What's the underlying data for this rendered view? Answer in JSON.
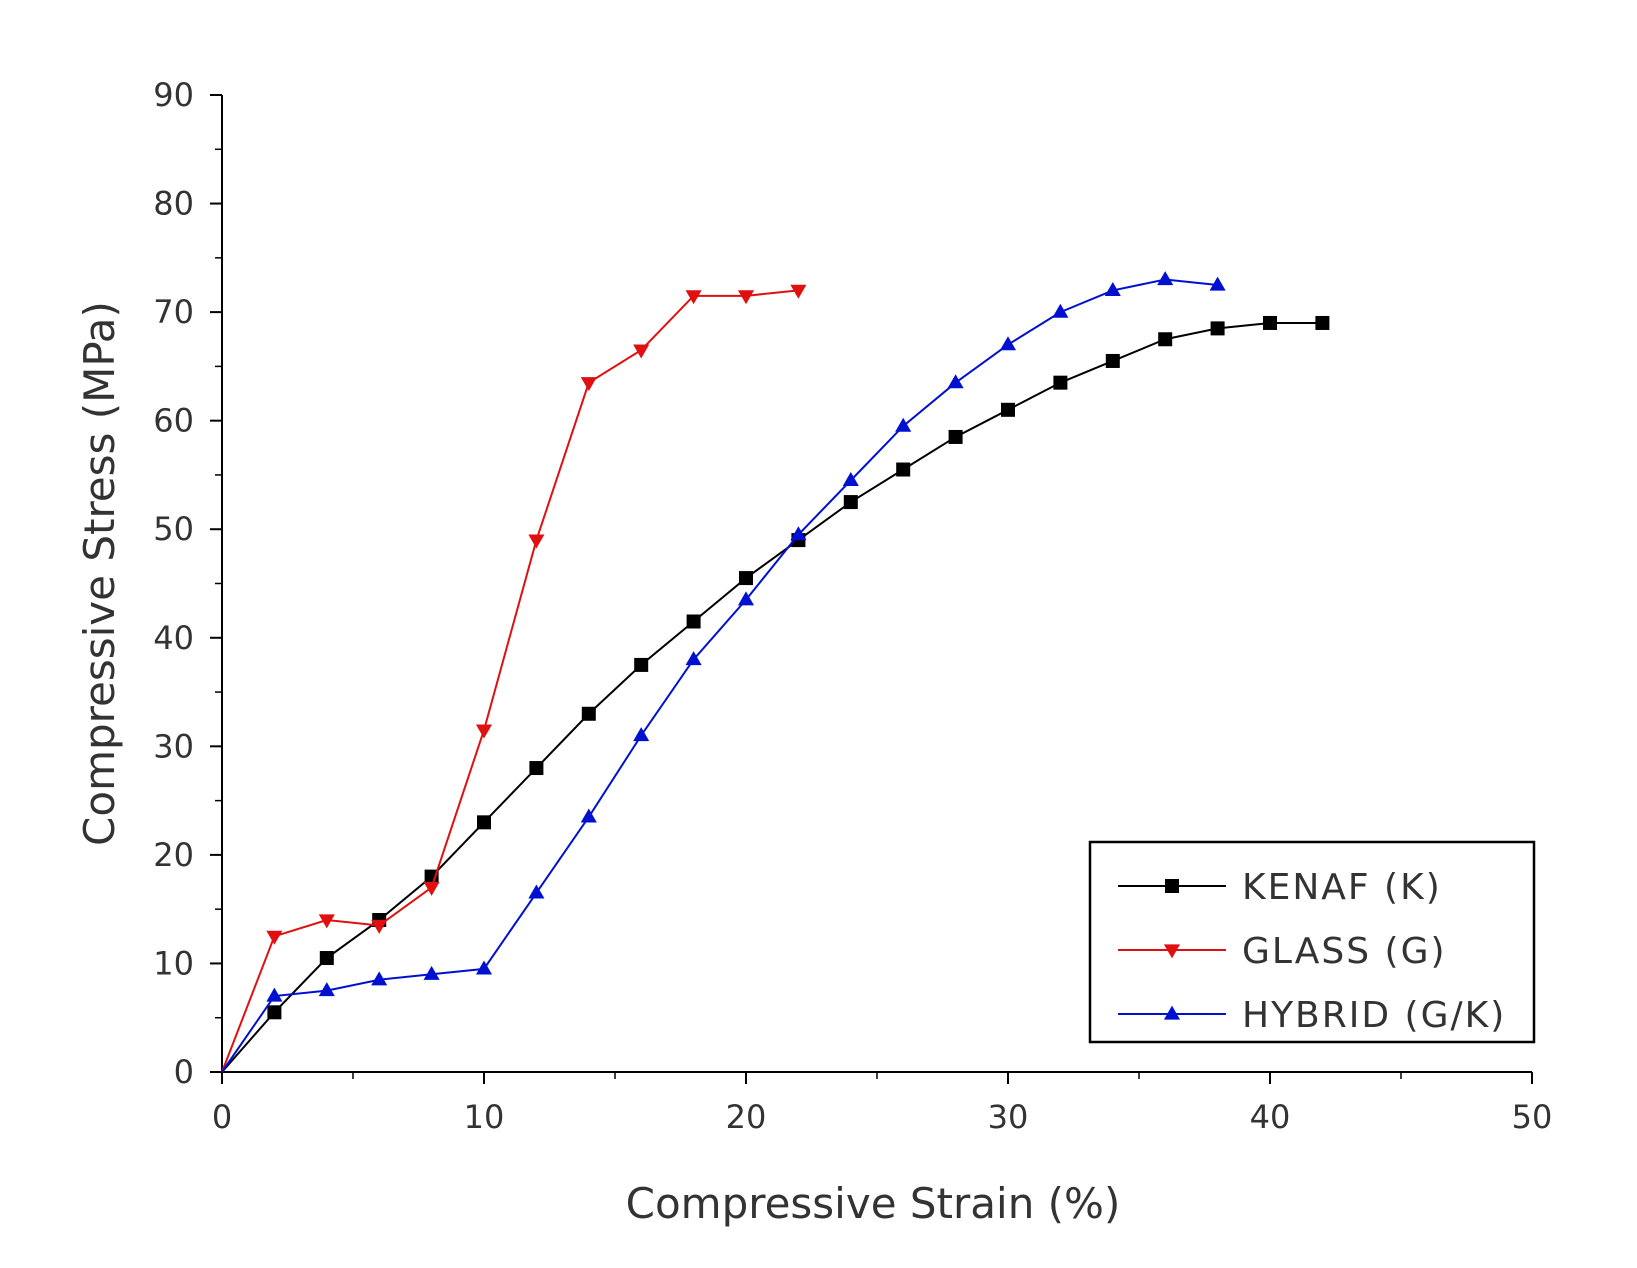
{
  "chart_data": {
    "type": "line",
    "title": "",
    "xlabel": "Compressive Strain (%)",
    "ylabel": "Compressive Stress (MPa)",
    "xlim": [
      0,
      50
    ],
    "ylim": [
      0,
      90
    ],
    "xticks": [
      "0",
      "10",
      "20",
      "30",
      "40",
      "50"
    ],
    "yticks": [
      "0",
      "10",
      "20",
      "30",
      "40",
      "50",
      "60",
      "70",
      "80",
      "90"
    ],
    "grid": false,
    "legend_position": "bottom-right",
    "series": [
      {
        "name": "KENAF (K)",
        "color": "#000000",
        "marker": "square",
        "x": [
          0,
          2,
          4,
          6,
          8,
          10,
          12,
          14,
          16,
          18,
          20,
          22,
          24,
          26,
          28,
          30,
          32,
          34,
          36,
          38,
          40,
          42
        ],
        "y": [
          0,
          5.5,
          10.5,
          14,
          18,
          23,
          28,
          33,
          37.5,
          41.5,
          45.5,
          49,
          52.5,
          55.5,
          58.5,
          61,
          63.5,
          65.5,
          67.5,
          68.5,
          69,
          69
        ]
      },
      {
        "name": "GLASS (G)",
        "color": "#e01010",
        "marker": "triangle-down",
        "x": [
          0,
          2,
          4,
          6,
          8,
          10,
          12,
          14,
          16,
          18,
          20,
          22
        ],
        "y": [
          0,
          12.5,
          14,
          13.5,
          17,
          31.5,
          49,
          63.5,
          66.5,
          71.5,
          71.5,
          72
        ]
      },
      {
        "name": "HYBRID (G/K)",
        "color": "#0010d0",
        "marker": "triangle-up",
        "x": [
          0,
          2,
          4,
          6,
          8,
          10,
          12,
          14,
          16,
          18,
          20,
          22,
          24,
          26,
          28,
          30,
          32,
          34,
          36,
          38
        ],
        "y": [
          0,
          7,
          7.5,
          8.5,
          9,
          9.5,
          16.5,
          23.5,
          31,
          38,
          43.5,
          49.5,
          54.5,
          59.5,
          63.5,
          67,
          70,
          72,
          73,
          72.5
        ]
      }
    ]
  }
}
